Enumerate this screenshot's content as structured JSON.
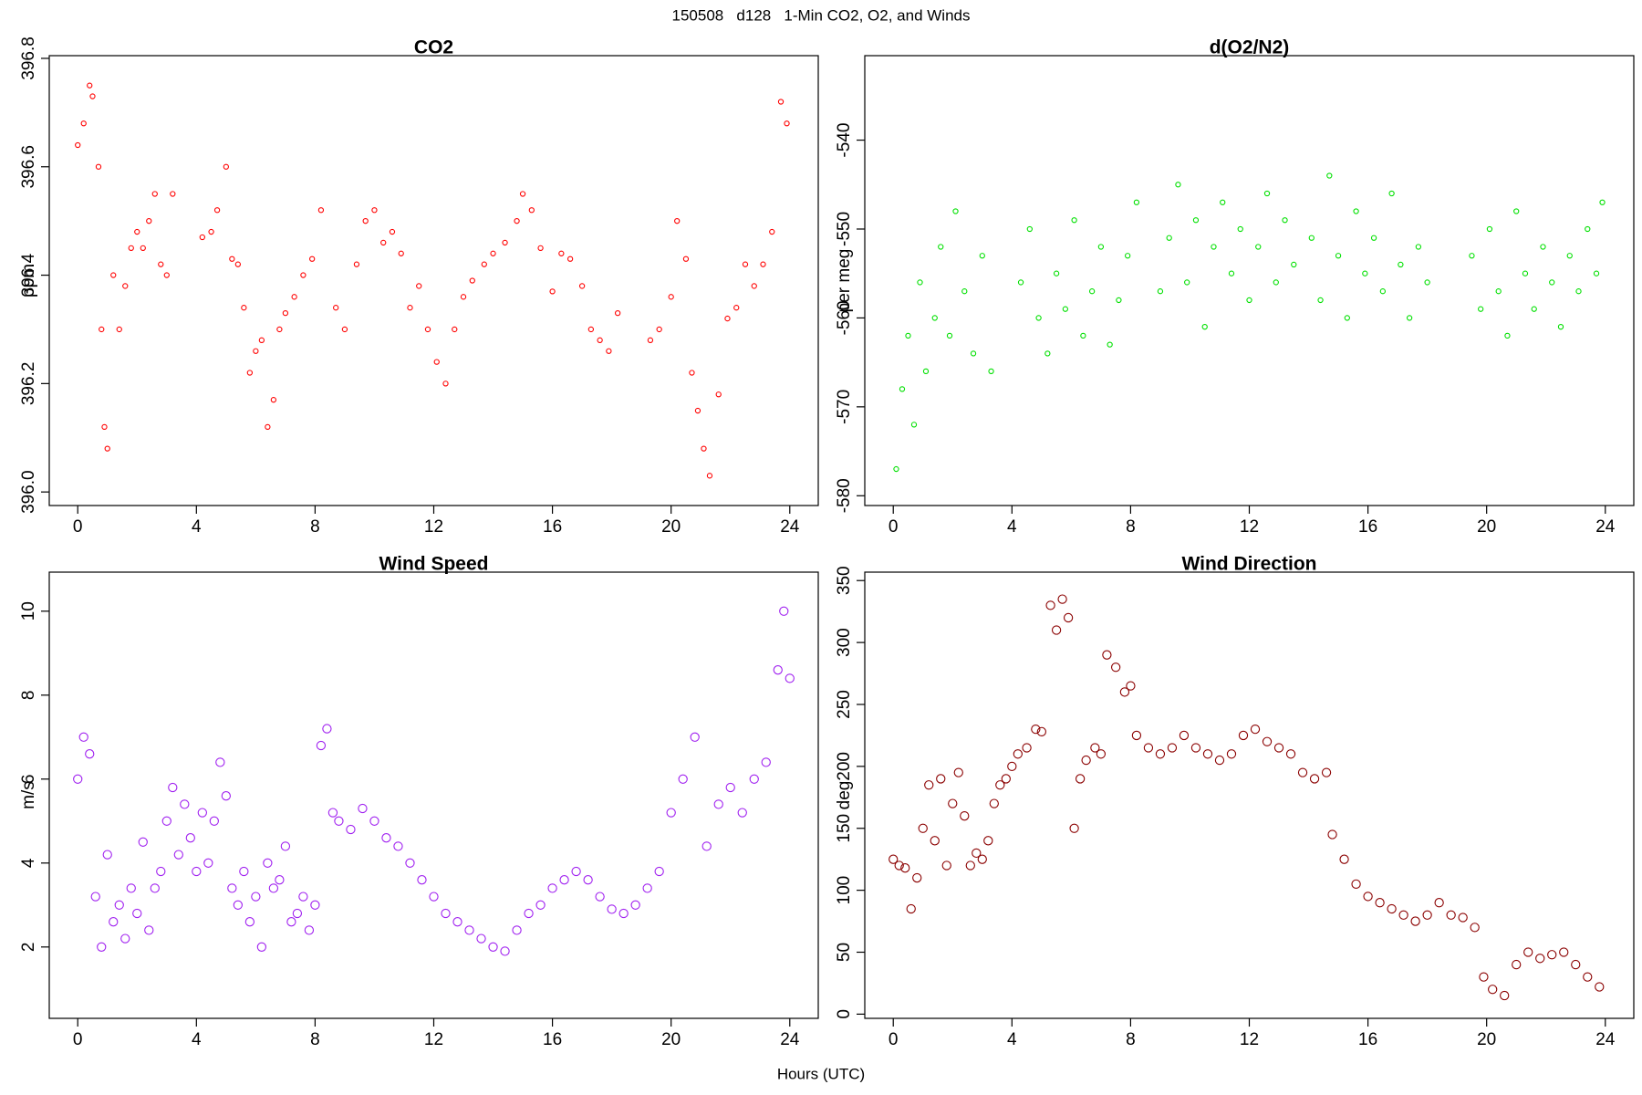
{
  "title": "150508   d128   1-Min CO2, O2, and Winds",
  "xlabel": "Hours (UTC)",
  "chart_data": [
    {
      "type": "scatter",
      "title": "CO2",
      "ylabel": "ppm",
      "color": "#ff0000",
      "xlim": [
        -0.96,
        24.96
      ],
      "xticks": [
        0,
        4,
        8,
        12,
        16,
        20,
        24
      ],
      "ylim": [
        395.975,
        396.805
      ],
      "yticks": [
        {
          "value": 396.0,
          "label": "396.0"
        },
        396.2,
        396.4,
        396.6,
        396.8
      ],
      "x": [
        0.0,
        0.2,
        0.4,
        0.5,
        0.7,
        0.8,
        0.9,
        1.0,
        1.2,
        1.4,
        1.6,
        1.8,
        2.0,
        2.2,
        2.4,
        2.6,
        2.8,
        3.0,
        3.2,
        4.2,
        4.5,
        4.7,
        5.0,
        5.2,
        5.4,
        5.6,
        5.8,
        6.0,
        6.2,
        6.4,
        6.6,
        6.8,
        7.0,
        7.3,
        7.6,
        7.9,
        8.2,
        8.7,
        9.0,
        9.4,
        9.7,
        10.0,
        10.3,
        10.6,
        10.9,
        11.2,
        11.5,
        11.8,
        12.1,
        12.4,
        12.7,
        13.0,
        13.3,
        13.7,
        14.0,
        14.4,
        14.8,
        15.0,
        15.3,
        15.6,
        16.0,
        16.3,
        16.6,
        17.0,
        17.3,
        17.6,
        17.9,
        18.2,
        19.3,
        19.6,
        20.0,
        20.2,
        20.5,
        20.7,
        20.9,
        21.1,
        21.3,
        21.6,
        21.9,
        22.2,
        22.5,
        22.8,
        23.1,
        23.4,
        23.7,
        23.9
      ],
      "values": [
        396.64,
        396.68,
        396.75,
        396.73,
        396.6,
        396.3,
        396.12,
        396.08,
        396.4,
        396.3,
        396.38,
        396.45,
        396.48,
        396.45,
        396.5,
        396.55,
        396.42,
        396.4,
        396.55,
        396.47,
        396.48,
        396.52,
        396.6,
        396.43,
        396.42,
        396.34,
        396.22,
        396.26,
        396.28,
        396.12,
        396.17,
        396.3,
        396.33,
        396.36,
        396.4,
        396.43,
        396.52,
        396.34,
        396.3,
        396.42,
        396.5,
        396.52,
        396.46,
        396.48,
        396.44,
        396.34,
        396.38,
        396.3,
        396.24,
        396.2,
        396.3,
        396.36,
        396.39,
        396.42,
        396.44,
        396.46,
        396.5,
        396.55,
        396.52,
        396.45,
        396.37,
        396.44,
        396.43,
        396.38,
        396.3,
        396.28,
        396.26,
        396.33,
        396.28,
        396.3,
        396.36,
        396.5,
        396.43,
        396.22,
        396.15,
        396.08,
        396.03,
        396.18,
        396.32,
        396.34,
        396.42,
        396.38,
        396.42,
        396.48,
        396.72,
        396.68
      ]
    },
    {
      "type": "scatter",
      "title": "d(O2/N2)",
      "ylabel": "per meg",
      "color": "#00e000",
      "xlim": [
        -0.96,
        24.96
      ],
      "xticks": [
        0,
        4,
        8,
        12,
        16,
        20,
        24
      ],
      "ylim": [
        -581.1,
        -530.5
      ],
      "yticks": [
        -580,
        -570,
        -560,
        -550,
        -540
      ],
      "x": [
        0.1,
        0.3,
        0.5,
        0.7,
        0.9,
        1.1,
        1.4,
        1.6,
        1.9,
        2.1,
        2.4,
        2.7,
        3.0,
        3.3,
        4.3,
        4.6,
        4.9,
        5.2,
        5.5,
        5.8,
        6.1,
        6.4,
        6.7,
        7.0,
        7.3,
        7.6,
        7.9,
        8.2,
        9.0,
        9.3,
        9.6,
        9.9,
        10.2,
        10.5,
        10.8,
        11.1,
        11.4,
        11.7,
        12.0,
        12.3,
        12.6,
        12.9,
        13.2,
        13.5,
        14.1,
        14.4,
        14.7,
        15.0,
        15.3,
        15.6,
        15.9,
        16.2,
        16.5,
        16.8,
        17.1,
        17.4,
        17.7,
        18.0,
        19.5,
        19.8,
        20.1,
        20.4,
        20.7,
        21.0,
        21.3,
        21.6,
        21.9,
        22.2,
        22.5,
        22.8,
        23.1,
        23.4,
        23.7,
        23.9
      ],
      "values": [
        -577,
        -568,
        -562,
        -572,
        -556,
        -566,
        -560,
        -552,
        -562,
        -548,
        -557,
        -564,
        -553,
        -566,
        -556,
        -550,
        -560,
        -564,
        -555,
        -559,
        -549,
        -562,
        -557,
        -552,
        -563,
        -558,
        -553,
        -547,
        -557,
        -551,
        -545,
        -556,
        -549,
        -561,
        -552,
        -547,
        -555,
        -550,
        -558,
        -552,
        -546,
        -556,
        -549,
        -554,
        -551,
        -558,
        -544,
        -553,
        -560,
        -548,
        -555,
        -551,
        -557,
        -546,
        -554,
        -560,
        -552,
        -556,
        -553,
        -559,
        -550,
        -557,
        -562,
        -548,
        -555,
        -559,
        -552,
        -556,
        -561,
        -553,
        -557,
        -550,
        -555,
        -547
      ]
    },
    {
      "type": "scatter",
      "title": "Wind Speed",
      "ylabel": "m/s",
      "color": "#a020f0",
      "xlim": [
        -0.96,
        24.96
      ],
      "xticks": [
        0,
        4,
        8,
        12,
        16,
        20,
        24
      ],
      "ylim": [
        0.3,
        10.93
      ],
      "yticks": [
        2,
        4,
        6,
        8,
        10
      ],
      "x": [
        0.0,
        0.2,
        0.4,
        0.6,
        0.8,
        1.0,
        1.2,
        1.4,
        1.6,
        1.8,
        2.0,
        2.2,
        2.4,
        2.6,
        2.8,
        3.0,
        3.2,
        3.4,
        3.6,
        3.8,
        4.0,
        4.2,
        4.4,
        4.6,
        4.8,
        5.0,
        5.2,
        5.4,
        5.6,
        5.8,
        6.0,
        6.2,
        6.4,
        6.6,
        6.8,
        7.0,
        7.2,
        7.4,
        7.6,
        7.8,
        8.0,
        8.2,
        8.4,
        8.6,
        8.8,
        9.2,
        9.6,
        10.0,
        10.4,
        10.8,
        11.2,
        11.6,
        12.0,
        12.4,
        12.8,
        13.2,
        13.6,
        14.0,
        14.4,
        14.8,
        15.2,
        15.6,
        16.0,
        16.4,
        16.8,
        17.2,
        17.6,
        18.0,
        18.4,
        18.8,
        19.2,
        19.6,
        20.0,
        20.4,
        20.8,
        21.2,
        21.6,
        22.0,
        22.4,
        22.8,
        23.2,
        23.6,
        23.8,
        24.0
      ],
      "values": [
        6.0,
        7.0,
        6.6,
        3.2,
        2.0,
        4.2,
        2.6,
        3.0,
        2.2,
        3.4,
        2.8,
        4.5,
        2.4,
        3.4,
        3.8,
        5.0,
        5.8,
        4.2,
        5.4,
        4.6,
        3.8,
        5.2,
        4.0,
        5.0,
        6.4,
        5.6,
        3.4,
        3.0,
        3.8,
        2.6,
        3.2,
        2.0,
        4.0,
        3.4,
        3.6,
        4.4,
        2.6,
        2.8,
        3.2,
        2.4,
        3.0,
        6.8,
        7.2,
        5.2,
        5.0,
        4.8,
        5.3,
        5.0,
        4.6,
        4.4,
        4.0,
        3.6,
        3.2,
        2.8,
        2.6,
        2.4,
        2.2,
        2.0,
        1.9,
        2.4,
        2.8,
        3.0,
        3.4,
        3.6,
        3.8,
        3.6,
        3.2,
        2.9,
        2.8,
        3.0,
        3.4,
        3.8,
        5.2,
        6.0,
        7.0,
        4.4,
        5.4,
        5.8,
        5.2,
        6.0,
        6.4,
        8.6,
        10.0,
        8.4
      ]
    },
    {
      "type": "scatter",
      "title": "Wind Direction",
      "ylabel": "deg",
      "color": "#8b0000",
      "xlim": [
        -0.96,
        24.96
      ],
      "xticks": [
        0,
        4,
        8,
        12,
        16,
        20,
        24
      ],
      "ylim": [
        -3.4,
        356.8
      ],
      "yticks": [
        0,
        50,
        100,
        150,
        200,
        250,
        300,
        350
      ],
      "x": [
        0.0,
        0.2,
        0.4,
        0.6,
        0.8,
        1.0,
        1.2,
        1.4,
        1.6,
        1.8,
        2.0,
        2.2,
        2.4,
        2.6,
        2.8,
        3.0,
        3.2,
        3.4,
        3.6,
        3.8,
        4.0,
        4.2,
        4.5,
        4.8,
        5.0,
        5.3,
        5.5,
        5.7,
        5.9,
        6.1,
        6.3,
        6.5,
        6.8,
        7.0,
        7.2,
        7.5,
        7.8,
        8.0,
        8.2,
        8.6,
        9.0,
        9.4,
        9.8,
        10.2,
        10.6,
        11.0,
        11.4,
        11.8,
        12.2,
        12.6,
        13.0,
        13.4,
        13.8,
        14.2,
        14.6,
        14.8,
        15.2,
        15.6,
        16.0,
        16.4,
        16.8,
        17.2,
        17.6,
        18.0,
        18.4,
        18.8,
        19.2,
        19.6,
        19.9,
        20.2,
        20.6,
        21.0,
        21.4,
        21.8,
        22.2,
        22.6,
        23.0,
        23.4,
        23.8
      ],
      "values": [
        125,
        120,
        118,
        85,
        110,
        150,
        185,
        140,
        190,
        120,
        170,
        195,
        160,
        120,
        130,
        125,
        140,
        170,
        185,
        190,
        200,
        210,
        215,
        230,
        228,
        330,
        310,
        335,
        320,
        150,
        190,
        205,
        215,
        210,
        290,
        280,
        260,
        265,
        225,
        215,
        210,
        215,
        225,
        215,
        210,
        205,
        210,
        225,
        230,
        220,
        215,
        210,
        195,
        190,
        195,
        145,
        125,
        105,
        95,
        90,
        85,
        80,
        75,
        80,
        90,
        80,
        78,
        70,
        30,
        20,
        15,
        40,
        50,
        45,
        48,
        50,
        40,
        30,
        22
      ]
    }
  ]
}
